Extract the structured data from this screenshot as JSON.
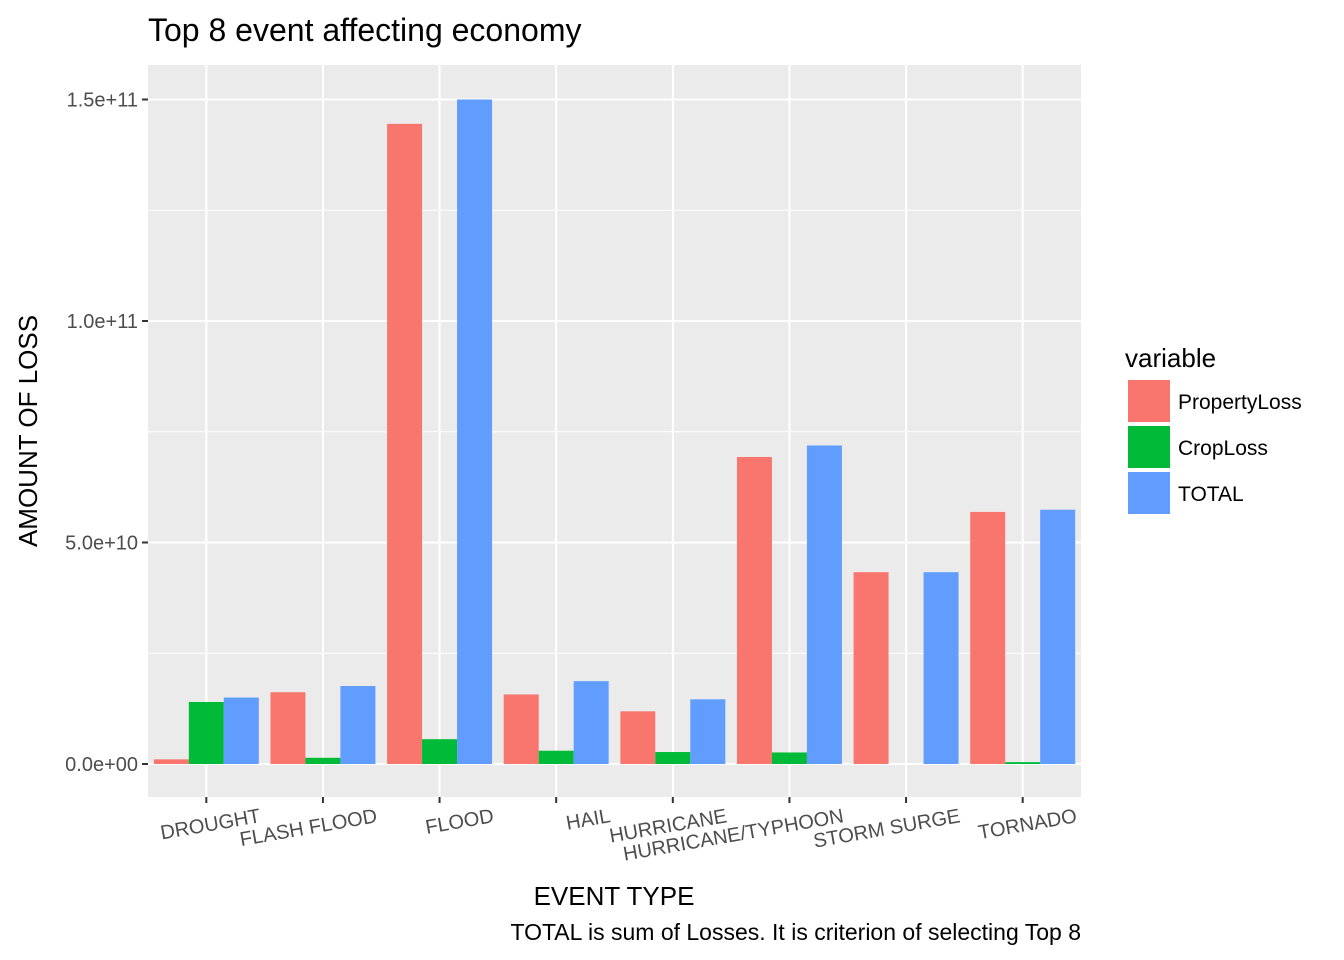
{
  "chart_data": {
    "type": "bar",
    "title": "Top 8 event affecting economy",
    "xlabel": "EVENT TYPE",
    "ylabel": "AMOUNT OF LOSS",
    "caption": "TOTAL is sum of Losses. It is criterion of selecting Top 8",
    "categories": [
      "DROUGHT",
      "FLASH FLOOD",
      "FLOOD",
      "HAIL",
      "HURRICANE",
      "HURRICANE/TYPHOON",
      "STORM SURGE",
      "TORNADO"
    ],
    "series": [
      {
        "name": "PropertyLoss",
        "color": "#F8766D",
        "values": [
          1050000000.0,
          16200000000.0,
          144500000000.0,
          15700000000.0,
          11900000000.0,
          69300000000.0,
          43300000000.0,
          56900000000.0
        ]
      },
      {
        "name": "CropLoss",
        "color": "#00BA38",
        "values": [
          14000000000.0,
          1400000000.0,
          5600000000.0,
          3000000000.0,
          2700000000.0,
          2600000000.0,
          0.0,
          420000000.0
        ]
      },
      {
        "name": "TOTAL",
        "color": "#619CFF",
        "values": [
          15000000000.0,
          17600000000.0,
          150000000000.0,
          18700000000.0,
          14600000000.0,
          71900000000.0,
          43300000000.0,
          57400000000.0
        ]
      }
    ],
    "ylim": [
      -7500000000.0,
      158000000000.0
    ],
    "y_ticks": [
      0,
      50000000000.0,
      100000000000.0,
      150000000000.0
    ],
    "y_tick_labels": [
      "0.0e+00",
      "5.0e+10",
      "1.0e+11",
      "1.5e+11"
    ],
    "x_tick_rotation_deg": -10,
    "grid": true,
    "legend": {
      "title": "variable",
      "position": "right"
    },
    "panel_color": "#EBEBEB",
    "grid_color": "#FFFFFF"
  }
}
